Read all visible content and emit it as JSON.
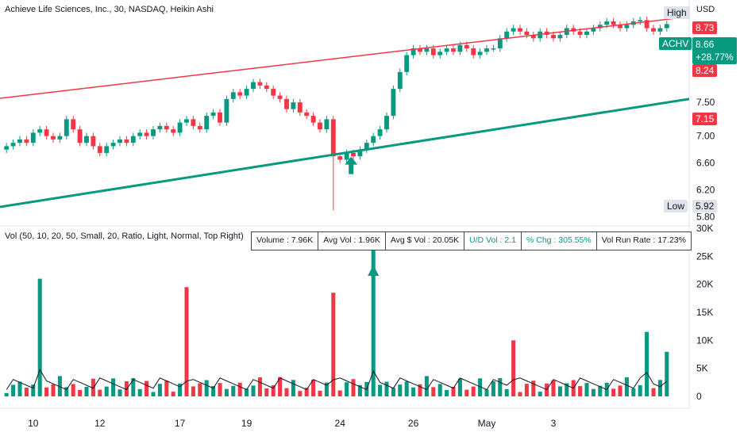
{
  "header": {
    "title": "Achieve Life Sciences, Inc., 30, NASDAQ, Heikin Ashi",
    "currency": "USD"
  },
  "price_tags": {
    "high_label": "High",
    "high_value": "8.73",
    "symbol": "ACHV",
    "last_price": "8.66",
    "change_pct": "+28.77%",
    "level_1": "8.24",
    "level_2": "7.15",
    "low_label": "Low",
    "low_value": "5.92"
  },
  "volume_panel": {
    "title": "Vol (50, 10, 20, 50, Small, 20, Ratio, Light, Normal, Top Right)",
    "stats": {
      "volume": "Volume : 7.96K",
      "avg_vol": "Avg Vol : 1.96K",
      "avg_dollar_vol": "Avg $ Vol : 20.05K",
      "ud_vol": "U/D Vol : 2.1",
      "pct_chg": "% Chg : 305.55%",
      "vol_run_rate": "Vol Run Rate : 17.23%"
    }
  },
  "colors": {
    "up": "#089981",
    "down": "#f23645",
    "resistance": "#f23645",
    "support": "#089981",
    "avg_line": "#131722"
  },
  "chart_data": [
    {
      "type": "candlestick",
      "style": "Heikin Ashi",
      "interval": "30",
      "symbol": "ACHV",
      "x_ticks": [
        "10",
        "12",
        "17",
        "19",
        "24",
        "26",
        "May",
        "3"
      ],
      "y_ticks": [
        5.8,
        6.2,
        6.6,
        7.0,
        7.5
      ],
      "ylim": [
        5.75,
        8.9
      ],
      "closes": [
        6.85,
        6.9,
        6.95,
        6.9,
        7.05,
        7.1,
        7.0,
        6.95,
        7.0,
        7.25,
        7.1,
        6.9,
        7.0,
        6.85,
        6.75,
        6.85,
        6.9,
        6.95,
        6.9,
        7.0,
        7.05,
        7.0,
        7.1,
        7.15,
        7.1,
        7.05,
        7.2,
        7.25,
        7.15,
        7.1,
        7.3,
        7.35,
        7.2,
        7.55,
        7.65,
        7.6,
        7.7,
        7.8,
        7.75,
        7.7,
        7.6,
        7.55,
        7.4,
        7.5,
        7.35,
        7.3,
        7.2,
        7.1,
        7.25,
        6.7,
        6.65,
        6.75,
        6.7,
        6.8,
        6.9,
        7.0,
        7.1,
        7.3,
        7.7,
        7.95,
        8.2,
        8.3,
        8.25,
        8.3,
        8.2,
        8.25,
        8.3,
        8.25,
        8.35,
        8.3,
        8.2,
        8.25,
        8.3,
        8.3,
        8.45,
        8.55,
        8.6,
        8.55,
        8.5,
        8.45,
        8.55,
        8.5,
        8.45,
        8.5,
        8.6,
        8.55,
        8.5,
        8.55,
        8.6,
        8.65,
        8.7,
        8.65,
        8.6,
        8.65,
        8.7,
        8.72,
        8.6,
        8.55,
        8.6,
        8.66
      ],
      "annotations": [
        {
          "type": "trendline",
          "name": "resistance",
          "points": [
            {
              "x": 0,
              "y": 7.56
            },
            {
              "x": 100,
              "y": 8.77
            }
          ]
        },
        {
          "type": "trendline",
          "name": "support",
          "points": [
            {
              "x": 0,
              "y": 5.95
            },
            {
              "x": 100,
              "y": 7.55
            }
          ]
        },
        {
          "type": "arrow",
          "direction": "up",
          "bar": 50
        }
      ]
    },
    {
      "type": "bar",
      "name": "volume",
      "y_ticks": [
        "0",
        "5K",
        "10K",
        "15K",
        "20K",
        "25K",
        "30K"
      ],
      "ylim": [
        0,
        30000
      ],
      "spikes": [
        {
          "bar": 5,
          "value": 21000,
          "direction": "up"
        },
        {
          "bar": 27,
          "value": 19500,
          "direction": "down"
        },
        {
          "bar": 49,
          "value": 18500,
          "direction": "down"
        },
        {
          "bar": 55,
          "value": 27000,
          "direction": "up"
        },
        {
          "bar": 76,
          "value": 10000,
          "direction": "down"
        },
        {
          "bar": 96,
          "value": 11500,
          "direction": "up"
        },
        {
          "bar": 99,
          "value": 7960,
          "direction": "up"
        }
      ]
    }
  ]
}
